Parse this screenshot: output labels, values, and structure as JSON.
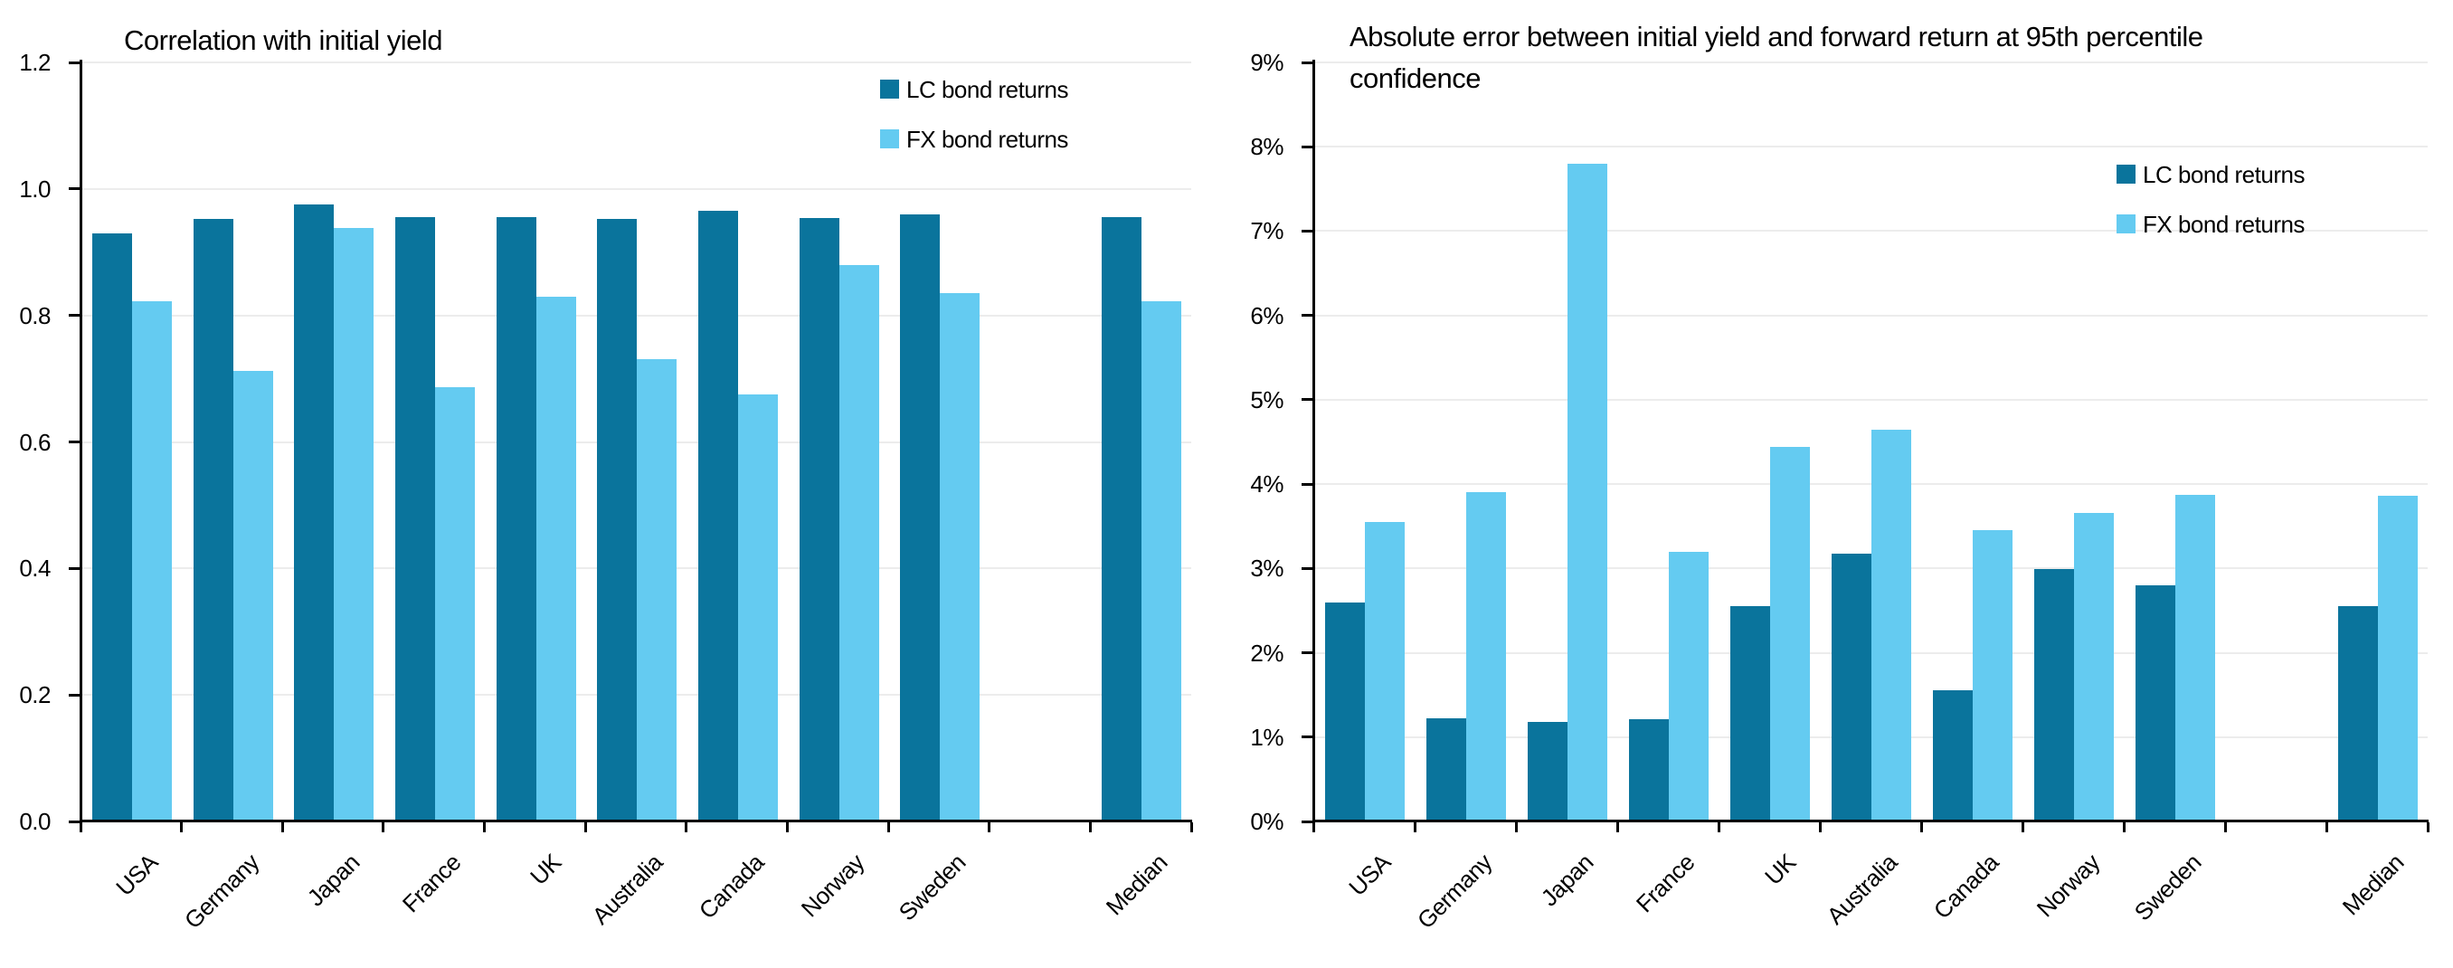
{
  "figure": {
    "background": "#ffffff",
    "text_color": "#000000",
    "grid_color": "#ececec",
    "axis_color": "#000000",
    "series_colors": {
      "lc": "#0a749c",
      "fx": "#64cbf1"
    }
  },
  "chart_data": [
    {
      "type": "bar",
      "title": "Correlation with initial yield",
      "title_lines": [
        "Correlation with initial yield"
      ],
      "xlabel": "",
      "ylabel": "",
      "categories": [
        "USA",
        "Germany",
        "Japan",
        "France",
        "UK",
        "Australia",
        "Canada",
        "Norway",
        "Sweden",
        "Median"
      ],
      "series": [
        {
          "name": "LC bond returns",
          "color": "#0a749c",
          "values": [
            0.93,
            0.952,
            0.976,
            0.956,
            0.956,
            0.953,
            0.965,
            0.954,
            0.96,
            0.956
          ]
        },
        {
          "name": "FX bond returns",
          "color": "#64cbf1",
          "values": [
            0.823,
            0.713,
            0.939,
            0.687,
            0.829,
            0.731,
            0.675,
            0.879,
            0.835,
            0.823
          ]
        }
      ],
      "ylim": [
        0,
        1.2
      ],
      "ytick_values": [
        0,
        0.2,
        0.4,
        0.6,
        0.8,
        1.0,
        1.2
      ],
      "ytick_labels": [
        "0.0",
        "0.2",
        "0.4",
        "0.6",
        "0.8",
        "1.0",
        "1.2"
      ],
      "grid": true,
      "legend_position": "upper-right",
      "legend": [
        "LC bond returns",
        "FX bond returns"
      ],
      "note_gap_before_median": true
    },
    {
      "type": "bar",
      "title": "Absolute error between initial yield and forward return at 95th percentile confidence",
      "title_lines": [
        "Absolute error between initial yield and forward return at 95th percentile",
        "confidence"
      ],
      "xlabel": "",
      "ylabel": "",
      "categories": [
        "USA",
        "Germany",
        "Japan",
        "France",
        "UK",
        "Australia",
        "Canada",
        "Norway",
        "Sweden",
        "Median"
      ],
      "series": [
        {
          "name": "LC bond returns",
          "color": "#0a749c",
          "values": [
            2.6,
            1.22,
            1.18,
            1.21,
            2.55,
            3.18,
            1.56,
            2.99,
            2.8,
            2.55
          ]
        },
        {
          "name": "FX bond returns",
          "color": "#64cbf1",
          "values": [
            3.55,
            3.9,
            7.8,
            3.2,
            4.44,
            4.65,
            3.45,
            3.66,
            3.87,
            3.86
          ]
        }
      ],
      "ylim": [
        0,
        9
      ],
      "ytick_values": [
        0,
        1,
        2,
        3,
        4,
        5,
        6,
        7,
        8,
        9
      ],
      "ytick_labels": [
        "0%",
        "1%",
        "2%",
        "3%",
        "4%",
        "5%",
        "6%",
        "7%",
        "8%",
        "9%"
      ],
      "grid": true,
      "legend_position": "upper-right",
      "legend": [
        "LC bond returns",
        "FX bond returns"
      ],
      "note_gap_before_median": true
    }
  ]
}
